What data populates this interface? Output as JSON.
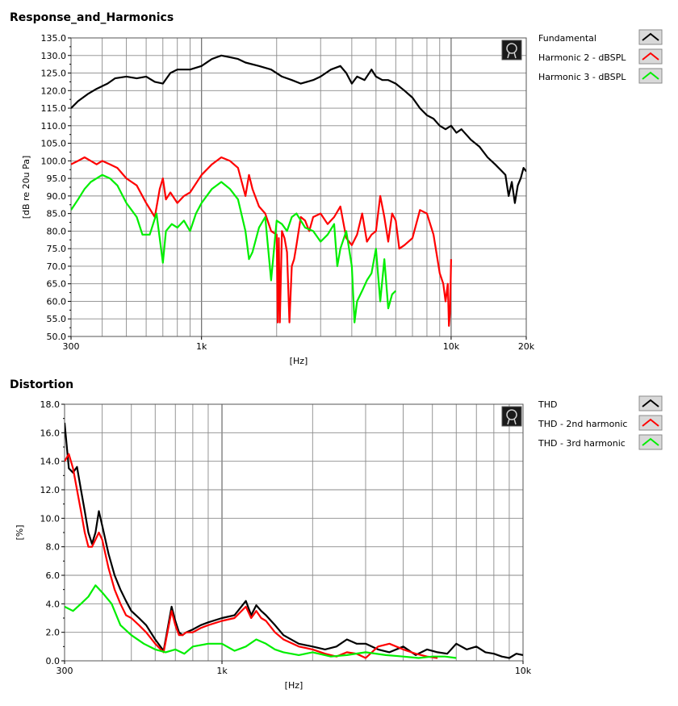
{
  "chart_data": [
    {
      "type": "line",
      "title": "Response_and_Harmonics",
      "xlabel": "[Hz]",
      "ylabel": "[dB re 20u Pa]",
      "xscale": "log",
      "xlim": [
        300,
        20000
      ],
      "ylim": [
        50,
        135
      ],
      "x_tick_labels": [
        "300",
        "1k",
        "10k",
        "20k"
      ],
      "y_tick_labels": [
        "135.0",
        "130.0",
        "125.0",
        "120.0",
        "115.0",
        "110.0",
        "105.0",
        "100.0",
        "95.0",
        "90.0",
        "85.0",
        "80.0",
        "75.0",
        "70.0",
        "65.0",
        "60.0",
        "55.0",
        "50.0"
      ],
      "grid": true,
      "legend_position": "right",
      "series": [
        {
          "name": "Fundamental",
          "color": "#000000",
          "x": [
            300,
            320,
            350,
            380,
            420,
            450,
            500,
            550,
            600,
            650,
            700,
            750,
            800,
            900,
            1000,
            1100,
            1200,
            1300,
            1400,
            1500,
            1700,
            1900,
            2100,
            2300,
            2500,
            2800,
            3000,
            3300,
            3600,
            3800,
            4000,
            4200,
            4500,
            4800,
            5000,
            5300,
            5600,
            6000,
            6500,
            7000,
            7500,
            8000,
            8500,
            9000,
            9500,
            10000,
            10500,
            11000,
            12000,
            13000,
            14000,
            15000,
            16000,
            16500,
            17000,
            17500,
            18000,
            18500,
            19000,
            19500,
            20000
          ],
          "y": [
            115,
            117,
            119,
            120.5,
            122,
            123.5,
            124,
            123.5,
            124,
            122.5,
            122,
            125,
            126,
            126,
            127,
            129,
            130,
            129.5,
            129,
            128,
            127,
            126,
            124,
            123,
            122,
            123,
            124,
            126,
            127,
            125,
            122,
            124,
            123,
            126,
            124,
            123,
            123,
            122,
            120,
            118,
            115,
            113,
            112,
            110,
            109,
            110,
            108,
            109,
            106,
            104,
            101,
            99,
            97,
            96,
            90,
            94,
            88,
            93,
            95,
            98,
            97
          ]
        },
        {
          "name": "Harmonic 2 - dBSPL",
          "color": "#ff0000",
          "x": [
            300,
            320,
            340,
            360,
            380,
            400,
            430,
            460,
            500,
            550,
            600,
            650,
            680,
            700,
            720,
            750,
            800,
            850,
            900,
            1000,
            1100,
            1200,
            1300,
            1400,
            1500,
            1550,
            1600,
            1700,
            1800,
            1900,
            2000,
            2020,
            2040,
            2060,
            2100,
            2150,
            2200,
            2250,
            2300,
            2350,
            2400,
            2500,
            2600,
            2700,
            2800,
            3000,
            3200,
            3400,
            3600,
            3800,
            4000,
            4200,
            4400,
            4600,
            4800,
            5000,
            5200,
            5400,
            5600,
            5800,
            6000,
            6200,
            6500,
            7000,
            7500,
            8000,
            8500,
            9000,
            9300,
            9500,
            9700,
            9800,
            9900,
            10000
          ],
          "y": [
            99,
            100,
            101,
            100,
            99,
            100,
            99,
            98,
            95,
            93,
            88,
            84,
            92,
            95,
            89,
            91,
            88,
            90,
            91,
            96,
            99,
            101,
            100,
            98,
            90,
            96,
            92,
            87,
            85,
            80,
            79,
            54,
            78,
            54,
            80,
            78,
            74,
            54,
            70,
            72,
            76,
            84,
            83,
            80,
            84,
            85,
            82,
            84,
            87,
            78,
            76,
            79,
            85,
            77,
            79,
            80,
            90,
            84,
            77,
            85,
            83,
            75,
            76,
            78,
            86,
            85,
            79,
            68,
            65,
            60,
            65,
            53,
            57,
            72
          ]
        },
        {
          "name": "Harmonic 3 - dBSPL",
          "color": "#00ee00",
          "x": [
            300,
            320,
            340,
            360,
            380,
            400,
            430,
            460,
            500,
            550,
            580,
            620,
            660,
            700,
            720,
            760,
            800,
            850,
            900,
            950,
            1000,
            1100,
            1200,
            1300,
            1400,
            1500,
            1550,
            1600,
            1700,
            1800,
            1900,
            2000,
            2100,
            2200,
            2300,
            2400,
            2600,
            2800,
            3000,
            3200,
            3400,
            3500,
            3600,
            3800,
            4000,
            4100,
            4200,
            4400,
            4600,
            4800,
            5000,
            5200,
            5400,
            5600,
            5800,
            6000
          ],
          "y": [
            86,
            89,
            92,
            94,
            95,
            96,
            95,
            93,
            88,
            84,
            79,
            79,
            85,
            71,
            80,
            82,
            81,
            83,
            80,
            85,
            88,
            92,
            94,
            92,
            89,
            80,
            72,
            74,
            81,
            84,
            66,
            83,
            82,
            80,
            84,
            85,
            81,
            80,
            77,
            79,
            82,
            70,
            75,
            80,
            70,
            54,
            60,
            63,
            66,
            68,
            75,
            60,
            72,
            58,
            62,
            63
          ]
        }
      ]
    },
    {
      "type": "line",
      "title": "Distortion",
      "xlabel": "[Hz]",
      "ylabel": "[%]",
      "xscale": "log",
      "xlim": [
        300,
        10000
      ],
      "ylim": [
        0,
        18
      ],
      "x_tick_labels": [
        "300",
        "1k",
        "10k"
      ],
      "y_tick_labels": [
        "18.0",
        "16.0",
        "14.0",
        "12.0",
        "10.0",
        "8.0",
        "6.0",
        "4.0",
        "2.0",
        "0.0"
      ],
      "grid": true,
      "legend_position": "right",
      "series": [
        {
          "name": "THD",
          "color": "#000000",
          "x": [
            300,
            310,
            320,
            330,
            340,
            350,
            360,
            370,
            380,
            390,
            400,
            420,
            440,
            460,
            480,
            500,
            530,
            560,
            600,
            640,
            680,
            700,
            720,
            740,
            760,
            800,
            850,
            900,
            1000,
            1100,
            1200,
            1250,
            1300,
            1350,
            1400,
            1500,
            1600,
            1800,
            2000,
            2200,
            2400,
            2600,
            2800,
            3000,
            3300,
            3600,
            4000,
            4400,
            4800,
            5200,
            5600,
            6000,
            6500,
            7000,
            7500,
            8000,
            8500,
            9000,
            9500,
            10000
          ],
          "y": [
            16.7,
            13.5,
            13.2,
            13.6,
            12,
            10.5,
            9,
            8.2,
            9,
            10.5,
            9.5,
            7.5,
            6,
            5,
            4.2,
            3.5,
            3,
            2.5,
            1.5,
            0.7,
            3.8,
            2.8,
            2,
            1.8,
            2,
            2.2,
            2.5,
            2.7,
            3,
            3.2,
            4.2,
            3.2,
            3.9,
            3.5,
            3.2,
            2.5,
            1.8,
            1.2,
            1,
            0.8,
            1,
            1.5,
            1.2,
            1.2,
            0.8,
            0.6,
            1,
            0.4,
            0.8,
            0.6,
            0.5,
            1.2,
            0.8,
            1,
            0.6,
            0.5,
            0.3,
            0.2,
            0.5,
            0.4
          ]
        },
        {
          "name": "THD - 2nd harmonic",
          "color": "#ff0000",
          "x": [
            300,
            310,
            320,
            330,
            340,
            350,
            360,
            370,
            380,
            390,
            400,
            420,
            440,
            460,
            480,
            500,
            530,
            560,
            600,
            640,
            680,
            700,
            720,
            740,
            760,
            800,
            850,
            900,
            1000,
            1100,
            1200,
            1250,
            1300,
            1350,
            1400,
            1500,
            1600,
            1800,
            2000,
            2200,
            2400,
            2600,
            2800,
            3000,
            3300,
            3600,
            4000,
            4400,
            4800,
            5200
          ],
          "y": [
            14,
            14.5,
            13.5,
            12,
            10.5,
            9,
            8,
            8,
            8.5,
            9,
            8.5,
            6.5,
            5,
            4,
            3.2,
            3,
            2.5,
            2,
            1.2,
            0.6,
            3.5,
            2.5,
            1.8,
            1.8,
            2,
            2,
            2.3,
            2.5,
            2.8,
            3,
            3.8,
            3,
            3.5,
            3,
            2.8,
            2,
            1.5,
            1,
            0.8,
            0.5,
            0.3,
            0.6,
            0.5,
            0.2,
            1,
            1.2,
            0.8,
            0.5,
            0.3,
            0.2
          ]
        },
        {
          "name": "THD - 3rd harmonic",
          "color": "#00ee00",
          "x": [
            300,
            320,
            340,
            360,
            380,
            400,
            430,
            460,
            500,
            550,
            600,
            650,
            700,
            750,
            800,
            900,
            1000,
            1100,
            1200,
            1300,
            1400,
            1500,
            1600,
            1800,
            2000,
            2300,
            2600,
            3000,
            3500,
            4000,
            4500,
            5000,
            5500,
            6000
          ],
          "y": [
            3.8,
            3.5,
            4,
            4.5,
            5.3,
            4.8,
            4,
            2.5,
            1.8,
            1.2,
            0.8,
            0.6,
            0.8,
            0.5,
            1,
            1.2,
            1.2,
            0.7,
            1,
            1.5,
            1.2,
            0.8,
            0.6,
            0.4,
            0.6,
            0.3,
            0.4,
            0.6,
            0.4,
            0.3,
            0.2,
            0.3,
            0.3,
            0.2
          ]
        }
      ]
    }
  ]
}
